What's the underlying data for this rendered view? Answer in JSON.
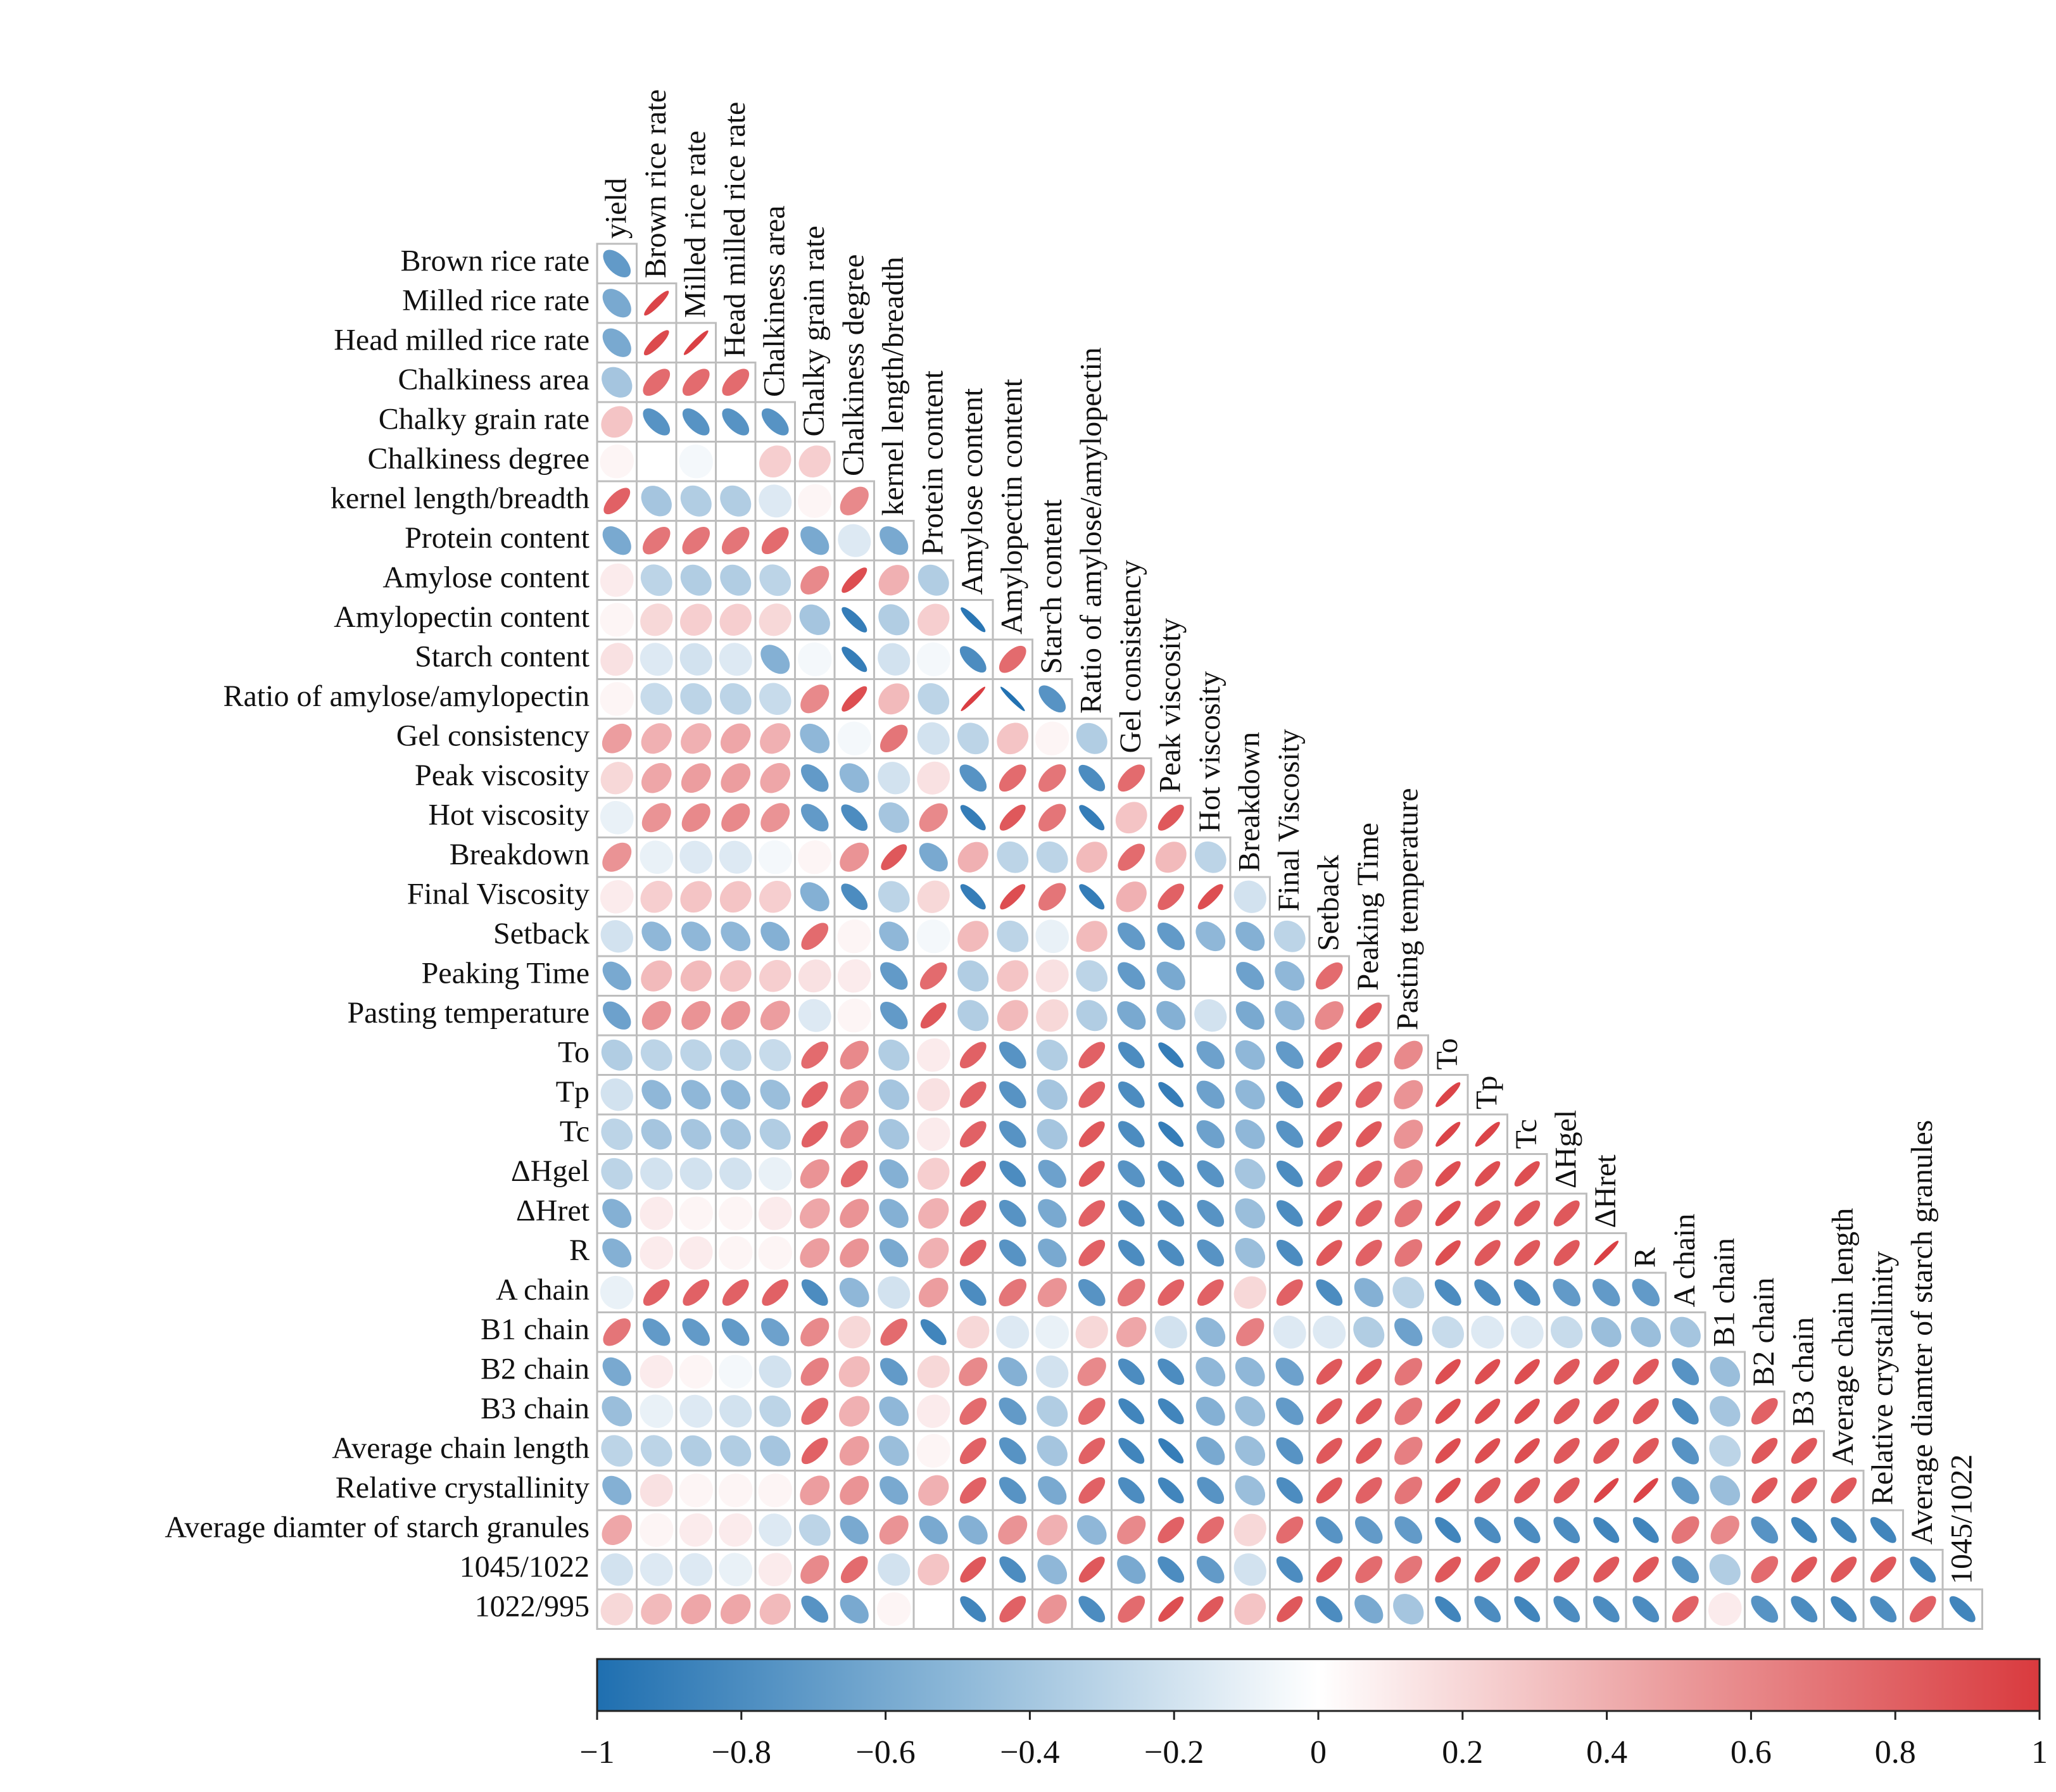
{
  "chart_data": {
    "type": "heatmap",
    "style": "lower-triangle correlation ellipses",
    "variables": [
      "yield",
      "Brown rice rate",
      "Milled rice rate",
      "Head milled rice rate",
      "Chalkiness area",
      "Chalky grain rate",
      "Chalkiness degree",
      "kernel length/breadth",
      "Protein content",
      "Amylose content",
      "Amylopectin content",
      "Starch content",
      "Ratio of amylose/amylopectin",
      "Gel consistency",
      "Peak viscosity",
      "Hot viscosity",
      "Breakdown",
      "Final Viscosity",
      "Setback",
      "Peaking Time",
      "Pasting temperature",
      "To",
      "Tp",
      "Tc",
      "ΔHgel",
      "ΔHret",
      "R",
      "A chain",
      "B1 chain",
      "B2 chain",
      "B3 chain",
      "Average chain length",
      "Relative crystallinity",
      "Average diamter of starch granules",
      "1045/1022",
      "1022/995"
    ],
    "correlations": [
      [
        -0.7
      ],
      [
        -0.6,
        0.95
      ],
      [
        -0.6,
        0.92,
        0.97
      ],
      [
        -0.4,
        0.75,
        0.75,
        0.75
      ],
      [
        0.3,
        -0.75,
        -0.75,
        -0.75,
        -0.75
      ],
      [
        0.05,
        0.0,
        -0.05,
        0.0,
        0.25,
        0.25
      ],
      [
        0.8,
        -0.4,
        -0.35,
        -0.35,
        -0.15,
        0.05,
        0.6
      ],
      [
        -0.6,
        0.7,
        0.7,
        0.7,
        0.75,
        -0.6,
        -0.15,
        -0.6
      ],
      [
        0.1,
        -0.3,
        -0.35,
        -0.35,
        -0.3,
        0.6,
        0.9,
        0.4,
        -0.35
      ],
      [
        0.05,
        0.2,
        0.25,
        0.25,
        0.2,
        -0.4,
        -0.9,
        -0.35,
        0.25,
        -0.95
      ],
      [
        0.15,
        -0.15,
        -0.2,
        -0.15,
        -0.55,
        -0.05,
        -0.9,
        -0.2,
        -0.05,
        -0.8,
        0.75
      ],
      [
        0.05,
        -0.25,
        -0.3,
        -0.3,
        -0.25,
        0.6,
        0.9,
        0.35,
        -0.3,
        0.98,
        -0.98,
        -0.75
      ],
      [
        0.5,
        0.4,
        0.4,
        0.45,
        0.4,
        -0.5,
        -0.05,
        0.7,
        -0.2,
        -0.3,
        0.3,
        0.05,
        -0.35
      ],
      [
        0.2,
        0.45,
        0.5,
        0.5,
        0.45,
        -0.7,
        -0.5,
        -0.2,
        0.15,
        -0.75,
        0.75,
        0.7,
        -0.8,
        0.75
      ],
      [
        -0.1,
        0.55,
        0.6,
        0.6,
        0.55,
        -0.7,
        -0.8,
        -0.4,
        0.6,
        -0.9,
        0.85,
        0.7,
        -0.9,
        0.3,
        0.85
      ],
      [
        0.55,
        -0.1,
        -0.15,
        -0.15,
        -0.05,
        0.05,
        0.55,
        0.85,
        -0.6,
        0.4,
        -0.3,
        -0.3,
        0.35,
        0.75,
        0.35,
        -0.3
      ],
      [
        0.1,
        0.25,
        0.3,
        0.3,
        0.25,
        -0.55,
        -0.8,
        -0.3,
        0.2,
        -0.9,
        0.9,
        0.7,
        -0.9,
        0.4,
        0.8,
        0.9,
        -0.2
      ],
      [
        -0.2,
        -0.5,
        -0.5,
        -0.5,
        -0.55,
        0.75,
        0.05,
        -0.5,
        -0.05,
        0.35,
        -0.3,
        -0.1,
        0.35,
        -0.7,
        -0.7,
        -0.5,
        -0.55,
        -0.3
      ],
      [
        -0.6,
        0.35,
        0.35,
        0.3,
        0.25,
        0.15,
        0.1,
        -0.7,
        0.75,
        -0.35,
        0.3,
        0.15,
        -0.3,
        -0.7,
        -0.6,
        0.0,
        -0.65,
        -0.5,
        0.75
      ],
      [
        -0.65,
        0.55,
        0.55,
        0.55,
        0.5,
        -0.15,
        0.05,
        -0.7,
        0.85,
        -0.35,
        0.35,
        0.2,
        -0.35,
        -0.6,
        -0.55,
        -0.2,
        -0.6,
        -0.5,
        0.6,
        0.85
      ],
      [
        -0.35,
        -0.3,
        -0.3,
        -0.3,
        -0.25,
        0.75,
        0.6,
        -0.35,
        0.1,
        0.8,
        -0.75,
        -0.35,
        0.8,
        -0.8,
        -0.9,
        -0.65,
        -0.5,
        -0.7,
        0.85,
        0.8,
        0.6
      ],
      [
        -0.2,
        -0.5,
        -0.5,
        -0.5,
        -0.45,
        0.8,
        0.6,
        -0.4,
        0.15,
        0.8,
        -0.75,
        -0.4,
        0.8,
        -0.8,
        -0.9,
        -0.65,
        -0.5,
        -0.75,
        0.85,
        0.8,
        0.55,
        0.95
      ],
      [
        -0.3,
        -0.4,
        -0.4,
        -0.4,
        -0.35,
        0.8,
        0.65,
        -0.4,
        0.1,
        0.8,
        -0.75,
        -0.4,
        0.85,
        -0.8,
        -0.9,
        -0.65,
        -0.5,
        -0.75,
        0.85,
        0.85,
        0.55,
        0.95,
        0.95
      ],
      [
        -0.3,
        -0.2,
        -0.2,
        -0.2,
        -0.1,
        0.55,
        0.75,
        -0.55,
        0.25,
        0.85,
        -0.8,
        -0.65,
        0.85,
        -0.75,
        -0.8,
        -0.75,
        -0.4,
        -0.8,
        0.8,
        0.8,
        0.6,
        0.9,
        0.9,
        0.9
      ],
      [
        -0.55,
        0.1,
        0.05,
        0.05,
        0.1,
        0.45,
        0.55,
        -0.55,
        0.4,
        0.8,
        -0.75,
        -0.6,
        0.8,
        -0.8,
        -0.8,
        -0.75,
        -0.45,
        -0.8,
        0.85,
        0.8,
        0.7,
        0.9,
        0.85,
        0.85,
        0.85
      ],
      [
        -0.55,
        0.1,
        0.1,
        0.05,
        0.05,
        0.5,
        0.55,
        -0.6,
        0.4,
        0.8,
        -0.75,
        -0.6,
        0.8,
        -0.8,
        -0.8,
        -0.75,
        -0.45,
        -0.8,
        0.85,
        0.8,
        0.7,
        0.9,
        0.85,
        0.85,
        0.85,
        0.97
      ],
      [
        -0.1,
        0.8,
        0.8,
        0.8,
        0.8,
        -0.8,
        -0.5,
        -0.2,
        0.5,
        -0.8,
        0.7,
        0.55,
        -0.75,
        0.7,
        0.8,
        0.8,
        0.2,
        0.8,
        -0.8,
        -0.55,
        -0.3,
        -0.8,
        -0.8,
        -0.8,
        -0.7,
        -0.7,
        -0.7
      ],
      [
        0.7,
        -0.7,
        -0.7,
        -0.7,
        -0.65,
        0.6,
        0.2,
        0.75,
        -0.85,
        0.2,
        -0.15,
        -0.1,
        0.2,
        0.45,
        -0.2,
        -0.5,
        0.65,
        -0.15,
        -0.15,
        -0.35,
        -0.65,
        -0.25,
        -0.15,
        -0.15,
        -0.25,
        -0.45,
        -0.45,
        -0.4
      ],
      [
        -0.6,
        0.1,
        0.05,
        -0.05,
        -0.2,
        0.65,
        0.35,
        -0.7,
        0.2,
        0.6,
        -0.55,
        -0.2,
        0.6,
        -0.8,
        -0.8,
        -0.5,
        -0.5,
        -0.65,
        0.85,
        0.85,
        0.7,
        0.9,
        0.9,
        0.9,
        0.85,
        0.85,
        0.85,
        -0.75,
        -0.45
      ],
      [
        -0.45,
        -0.1,
        -0.15,
        -0.2,
        -0.3,
        0.75,
        0.4,
        -0.5,
        0.1,
        0.75,
        -0.7,
        -0.35,
        0.75,
        -0.85,
        -0.85,
        -0.55,
        -0.45,
        -0.7,
        0.85,
        0.85,
        0.7,
        0.9,
        0.9,
        0.9,
        0.85,
        0.85,
        0.85,
        -0.8,
        -0.4,
        0.8
      ],
      [
        -0.3,
        -0.3,
        -0.35,
        -0.35,
        -0.4,
        0.8,
        0.5,
        -0.45,
        0.05,
        0.8,
        -0.75,
        -0.4,
        0.8,
        -0.85,
        -0.9,
        -0.6,
        -0.45,
        -0.75,
        0.85,
        0.85,
        0.65,
        0.9,
        0.9,
        0.9,
        0.85,
        0.85,
        0.85,
        -0.75,
        -0.3,
        0.85,
        0.85
      ],
      [
        -0.55,
        0.15,
        0.05,
        0.05,
        0.05,
        0.5,
        0.55,
        -0.6,
        0.4,
        0.8,
        -0.75,
        -0.6,
        0.8,
        -0.8,
        -0.85,
        -0.75,
        -0.45,
        -0.8,
        0.85,
        0.8,
        0.7,
        0.9,
        0.85,
        0.85,
        0.85,
        0.95,
        0.95,
        -0.7,
        -0.45,
        0.85,
        0.85,
        0.85
      ],
      [
        0.45,
        0.05,
        0.1,
        0.1,
        -0.15,
        -0.3,
        -0.6,
        0.55,
        -0.6,
        -0.55,
        0.55,
        0.4,
        -0.5,
        0.6,
        0.8,
        0.75,
        0.2,
        0.75,
        -0.75,
        -0.7,
        -0.7,
        -0.85,
        -0.8,
        -0.8,
        -0.8,
        -0.85,
        -0.85,
        0.7,
        0.6,
        -0.75,
        -0.85,
        -0.85,
        -0.85
      ],
      [
        -0.2,
        -0.15,
        -0.15,
        -0.1,
        0.1,
        0.6,
        0.75,
        -0.2,
        0.3,
        0.85,
        -0.8,
        -0.5,
        0.85,
        -0.6,
        -0.8,
        -0.7,
        -0.2,
        -0.8,
        0.85,
        0.75,
        0.7,
        0.85,
        0.85,
        0.85,
        0.85,
        0.85,
        0.85,
        -0.75,
        -0.35,
        0.75,
        0.85,
        0.85,
        0.85,
        -0.85
      ],
      [
        0.2,
        0.35,
        0.45,
        0.45,
        0.35,
        -0.75,
        -0.6,
        0.05,
        0.0,
        -0.85,
        0.8,
        0.55,
        -0.8,
        0.75,
        0.9,
        0.85,
        0.3,
        0.85,
        -0.8,
        -0.6,
        -0.4,
        -0.85,
        -0.8,
        -0.85,
        -0.8,
        -0.8,
        -0.8,
        0.8,
        0.1,
        -0.75,
        -0.8,
        -0.85,
        -0.8,
        0.8,
        -0.85
      ]
    ],
    "colorbar": {
      "range": [
        -1,
        1
      ],
      "ticks": [
        "−1",
        "−0.8",
        "−0.6",
        "−0.4",
        "−0.2",
        "0",
        "0.2",
        "0.4",
        "0.6",
        "0.8",
        "1"
      ],
      "colors": {
        "negative": "#1f6fb0",
        "neutral": "#ffffff",
        "positive": "#d93a3e"
      }
    },
    "grid": true
  }
}
